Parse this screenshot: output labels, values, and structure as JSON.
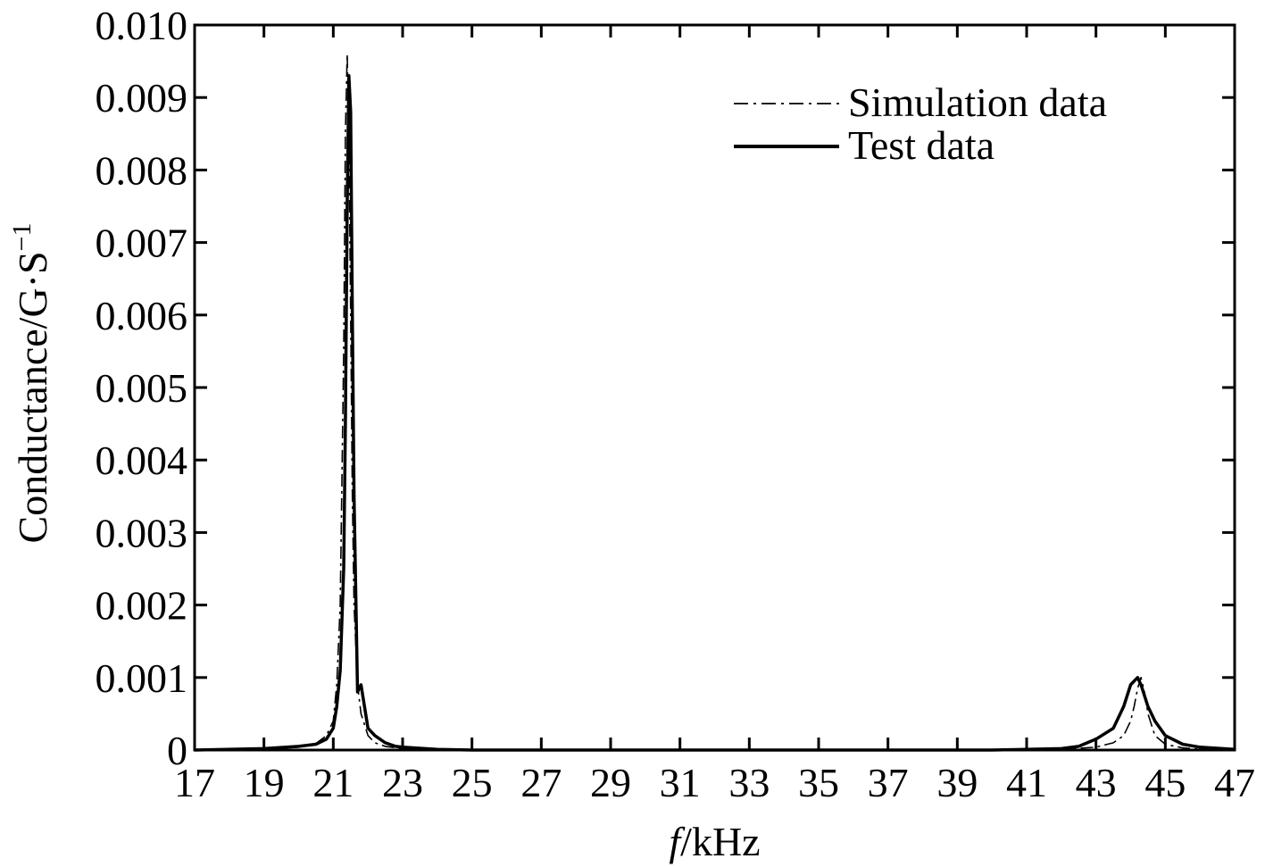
{
  "chart_data": {
    "type": "line",
    "xlabel_italic": "f",
    "xlabel_rest": "/kHz",
    "ylabel_main": "Conductance/G·S",
    "ylabel_sup": "−1",
    "xlim": [
      17,
      47
    ],
    "ylim": [
      0,
      0.01
    ],
    "x_ticks": [
      17,
      19,
      21,
      23,
      25,
      27,
      29,
      31,
      33,
      35,
      37,
      39,
      41,
      43,
      45,
      47
    ],
    "x_tick_labels": [
      "17",
      "19",
      "21",
      "23",
      "25",
      "27",
      "29",
      "31",
      "33",
      "35",
      "37",
      "39",
      "41",
      "43",
      "45",
      "47"
    ],
    "y_ticks": [
      0,
      0.001,
      0.002,
      0.003,
      0.004,
      0.005,
      0.006,
      0.007,
      0.008,
      0.009,
      0.01
    ],
    "y_tick_labels": [
      "0",
      "0.001",
      "0.002",
      "0.003",
      "0.004",
      "0.005",
      "0.006",
      "0.007",
      "0.008",
      "0.009",
      "0.010"
    ],
    "grid": false,
    "legend_position": "top-right",
    "series": [
      {
        "name": "Simulation data",
        "style": "dash-dot",
        "color": "#000000",
        "x": [
          17,
          19,
          20,
          20.5,
          20.8,
          21.0,
          21.1,
          21.2,
          21.3,
          21.35,
          21.4,
          21.45,
          21.5,
          21.55,
          21.6,
          21.7,
          21.8,
          22.0,
          22.2,
          22.5,
          23,
          25,
          30,
          35,
          40,
          42,
          43,
          43.5,
          43.8,
          44.0,
          44.1,
          44.2,
          44.3,
          44.4,
          44.5,
          44.7,
          45.0,
          45.5,
          46,
          47
        ],
        "y": [
          0,
          1e-05,
          4e-05,
          9e-05,
          0.0002,
          0.0004,
          0.0009,
          0.002,
          0.0055,
          0.0085,
          0.0096,
          0.0085,
          0.006,
          0.0035,
          0.002,
          0.0009,
          0.0005,
          0.0002,
          0.0001,
          5e-05,
          2e-05,
          0,
          0,
          0,
          0,
          1e-05,
          4e-05,
          0.0001,
          0.0002,
          0.0004,
          0.0006,
          0.00085,
          0.001,
          0.0008,
          0.0005,
          0.0002,
          8e-05,
          3e-05,
          1e-05,
          0
        ]
      },
      {
        "name": "Test data",
        "style": "solid",
        "color": "#000000",
        "x": [
          17,
          19,
          20,
          20.5,
          20.8,
          21.0,
          21.1,
          21.2,
          21.3,
          21.35,
          21.4,
          21.45,
          21.5,
          21.55,
          21.6,
          21.7,
          21.8,
          21.9,
          22.0,
          22.2,
          22.5,
          22.8,
          23,
          24,
          25,
          30,
          35,
          40,
          42,
          42.5,
          43,
          43.5,
          43.8,
          44.0,
          44.2,
          44.3,
          44.5,
          44.7,
          45.0,
          45.5,
          46,
          47
        ],
        "y": [
          0,
          2e-05,
          5e-05,
          8e-05,
          0.00015,
          0.0003,
          0.0006,
          0.0011,
          0.0025,
          0.0045,
          0.0075,
          0.0093,
          0.0088,
          0.006,
          0.0035,
          0.0008,
          0.0009,
          0.0006,
          0.0003,
          0.0002,
          0.0001,
          5e-05,
          4e-05,
          1e-05,
          0,
          0,
          0,
          0,
          2e-05,
          5e-05,
          0.00015,
          0.0003,
          0.0006,
          0.0009,
          0.001,
          0.0009,
          0.0006,
          0.0004,
          0.0002,
          8e-05,
          4e-05,
          1e-05
        ]
      }
    ]
  }
}
